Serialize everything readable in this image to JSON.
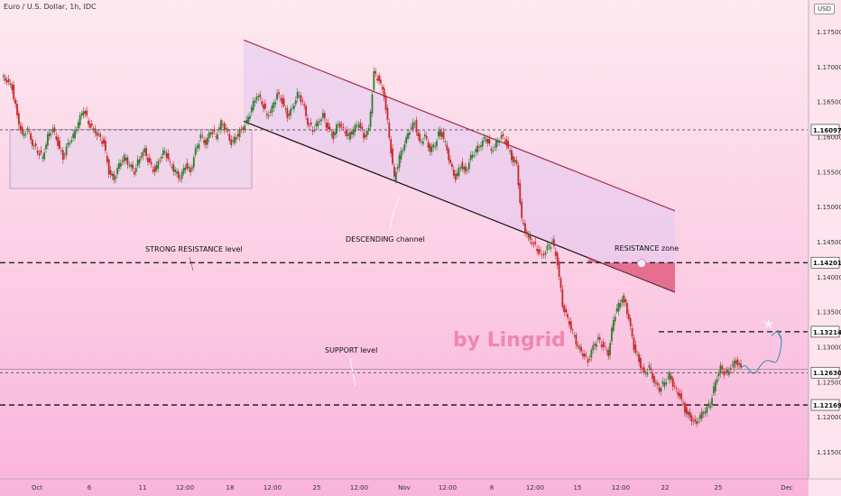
{
  "header": {
    "title": "Euro / U.S. Dollar, 1h, IDC",
    "currency": "USD"
  },
  "watermark": "by Lingrid",
  "annotations": {
    "strong_resistance": "STRONG RESISTANCE level",
    "descending_channel": "DESCENDING channel",
    "resistance_zone": "RESISTANCE zone",
    "support": "SUPPORT level"
  },
  "chart_data": {
    "type": "line",
    "title": "Euro / U.S. Dollar, 1h, IDC",
    "ylim": [
      1.115,
      1.179
    ],
    "y_ticks": [
      1.175,
      1.17,
      1.165,
      1.16,
      1.155,
      1.15,
      1.145,
      1.14,
      1.135,
      1.13,
      1.125,
      1.12,
      1.115
    ],
    "x_ticks": [
      "Oct",
      "6",
      "11",
      "12:00",
      "18",
      "12:00",
      "25",
      "12:00",
      "Nov",
      "12:00",
      "8",
      "12:00",
      "15",
      "12:00",
      "22",
      "25",
      "Dec"
    ],
    "price_labels": [
      1.16097,
      1.14201,
      1.13214,
      1.1263,
      1.12169
    ],
    "colors": {
      "up": "#2e7d32",
      "down": "#c62828",
      "channel": "#a3324f",
      "label_bg": "#ffffff"
    },
    "series": [
      {
        "values": [
          1.1685,
          1.168,
          1.167,
          1.163,
          1.16,
          1.161,
          1.159,
          1.158,
          1.157,
          1.16,
          1.161,
          1.159,
          1.157,
          1.159,
          1.16,
          1.162,
          1.164,
          1.162,
          1.161,
          1.16,
          1.159,
          1.155,
          1.154,
          1.156,
          1.157,
          1.156,
          1.155,
          1.157,
          1.158,
          1.156,
          1.155,
          1.157,
          1.158,
          1.156,
          1.155,
          1.154,
          1.156,
          1.155,
          1.158,
          1.16,
          1.159,
          1.161,
          1.16,
          1.162,
          1.161,
          1.159,
          1.16,
          1.161,
          1.162,
          1.164,
          1.166,
          1.165,
          1.163,
          1.164,
          1.166,
          1.165,
          1.163,
          1.164,
          1.166,
          1.165,
          1.162,
          1.161,
          1.162,
          1.163,
          1.161,
          1.16,
          1.162,
          1.161,
          1.16,
          1.161,
          1.162,
          1.16,
          1.161,
          1.169,
          1.168,
          1.166,
          1.16,
          1.154,
          1.157,
          1.159,
          1.161,
          1.162,
          1.159,
          1.16,
          1.158,
          1.159,
          1.161,
          1.159,
          1.156,
          1.154,
          1.156,
          1.155,
          1.157,
          1.158,
          1.159,
          1.16,
          1.158,
          1.159,
          1.16,
          1.159,
          1.157,
          1.156,
          1.148,
          1.146,
          1.145,
          1.144,
          1.143,
          1.144,
          1.145,
          1.142,
          1.136,
          1.134,
          1.132,
          1.13,
          1.129,
          1.128,
          1.13,
          1.131,
          1.13,
          1.129,
          1.134,
          1.136,
          1.137,
          1.134,
          1.13,
          1.128,
          1.126,
          1.127,
          1.125,
          1.124,
          1.125,
          1.126,
          1.124,
          1.123,
          1.121,
          1.12,
          1.119,
          1.12,
          1.121,
          1.122,
          1.125,
          1.127,
          1.126,
          1.127,
          1.128,
          1.127
        ]
      }
    ]
  }
}
